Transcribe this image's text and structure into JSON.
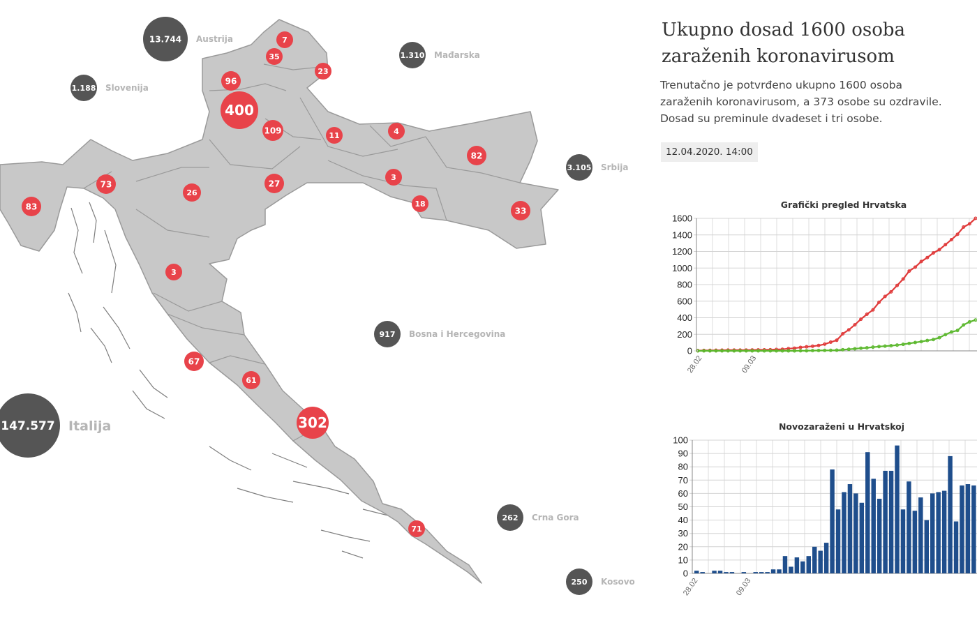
{
  "side": {
    "title_line1": "Ukupno dosad 1600 osoba",
    "title_line2": "zaraženih koronavirusom",
    "desc_line1": "Trenutačno je potvrđeno ukupno 1600 osoba",
    "desc_line2": "zaraženih koronavirusom, a 373 osobe su ozdravile.",
    "desc_line3": "Dosad su preminule dvadeset i tri osobe.",
    "date": "12.04.2020. 14:00"
  },
  "map": {
    "colors": {
      "land": "#c8c8c8",
      "border": "#9a9a9a",
      "county_bubble": "#e8434a",
      "country_bubble": "#555555"
    },
    "counties": [
      {
        "name": "county-bubble-medimurska",
        "value": "7"
      },
      {
        "name": "county-bubble-varazdinska",
        "value": "35"
      },
      {
        "name": "county-bubble-koprivnicka",
        "value": "23"
      },
      {
        "name": "county-bubble-krapinska",
        "value": "96"
      },
      {
        "name": "county-bubble-zagreb-grad",
        "value": "400"
      },
      {
        "name": "county-bubble-zagrebacka",
        "value": "109"
      },
      {
        "name": "county-bubble-bjelovarska",
        "value": "11"
      },
      {
        "name": "county-bubble-viroviticka",
        "value": "4"
      },
      {
        "name": "county-bubble-osjecka",
        "value": "82"
      },
      {
        "name": "county-bubble-pozeska",
        "value": "3"
      },
      {
        "name": "county-bubble-brodska",
        "value": "18"
      },
      {
        "name": "county-bubble-vukovarska",
        "value": "33"
      },
      {
        "name": "county-bubble-sisacka",
        "value": "27"
      },
      {
        "name": "county-bubble-karlovacka",
        "value": "26"
      },
      {
        "name": "county-bubble-primorska",
        "value": "73"
      },
      {
        "name": "county-bubble-istarska",
        "value": "83"
      },
      {
        "name": "county-bubble-licka",
        "value": "3"
      },
      {
        "name": "county-bubble-zadarska",
        "value": "67"
      },
      {
        "name": "county-bubble-sibenska",
        "value": "61"
      },
      {
        "name": "county-bubble-splitska",
        "value": "302"
      },
      {
        "name": "county-bubble-dubrovacka",
        "value": "71"
      }
    ],
    "countries": [
      {
        "name": "country-bubble-austrija",
        "value": "13.744",
        "label": "Austrija"
      },
      {
        "name": "country-bubble-madarska",
        "value": "1.310",
        "label": "Mađarska"
      },
      {
        "name": "country-bubble-slovenija",
        "value": "1.188",
        "label": "Slovenija"
      },
      {
        "name": "country-bubble-srbija",
        "value": "3.105",
        "label": "Srbija"
      },
      {
        "name": "country-bubble-bih",
        "value": "917",
        "label": "Bosna i Hercegovina"
      },
      {
        "name": "country-bubble-italija",
        "value": "147.577",
        "label": "Italija"
      },
      {
        "name": "country-bubble-crna-gora",
        "value": "262",
        "label": "Crna Gora"
      },
      {
        "name": "country-bubble-kosovo",
        "value": "250",
        "label": "Kosovo"
      }
    ]
  },
  "chart_data": [
    {
      "type": "line",
      "title": "Grafički pregled Hrvatska",
      "x_tick_labels": [
        "28.02",
        "09.03"
      ],
      "ylim": [
        0,
        1600
      ],
      "y_ticks": [
        0,
        200,
        400,
        600,
        800,
        1000,
        1200,
        1400,
        1600
      ],
      "grid": true,
      "colors": [
        "#e03a3a",
        "#5cb82e"
      ],
      "series": [
        {
          "values": [
            3,
            5,
            6,
            7,
            8,
            9,
            9,
            9,
            10,
            11,
            12,
            13,
            14,
            17,
            19,
            27,
            32,
            42,
            49,
            56,
            65,
            81,
            105,
            128,
            206,
            254,
            315,
            382,
            442,
            495,
            586,
            657,
            713,
            790,
            867,
            963,
            1011,
            1079,
            1126,
            1182,
            1222,
            1282,
            1343,
            1407,
            1495,
            1534,
            1600
          ]
        },
        {
          "values": [
            0,
            0,
            0,
            0,
            0,
            0,
            0,
            0,
            0,
            0,
            0,
            0,
            0,
            0,
            0,
            0,
            0,
            1,
            1,
            3,
            4,
            5,
            6,
            8,
            14,
            19,
            25,
            32,
            37,
            45,
            52,
            57,
            62,
            70,
            79,
            90,
            101,
            112,
            125,
            137,
            159,
            196,
            228,
            246,
            313,
            350,
            373
          ]
        }
      ]
    },
    {
      "type": "bar",
      "title": "Novozaraženi u Hrvatskoj",
      "x_tick_labels": [
        "28.02",
        "09.03"
      ],
      "ylim": [
        0,
        100
      ],
      "y_ticks": [
        0,
        10,
        20,
        30,
        40,
        50,
        60,
        70,
        80,
        90,
        100
      ],
      "grid": true,
      "colors": [
        "#1f4e8c"
      ],
      "values": [
        2,
        1,
        0,
        2,
        2,
        1,
        1,
        0,
        1,
        0,
        1,
        1,
        1,
        3,
        3,
        13,
        5,
        12,
        9,
        13,
        20,
        17,
        23,
        78,
        48,
        61,
        67,
        60,
        53,
        91,
        71,
        56,
        77,
        77,
        96,
        48,
        69,
        47,
        57,
        40,
        60,
        61,
        62,
        88,
        39,
        66,
        67,
        66
      ]
    }
  ]
}
